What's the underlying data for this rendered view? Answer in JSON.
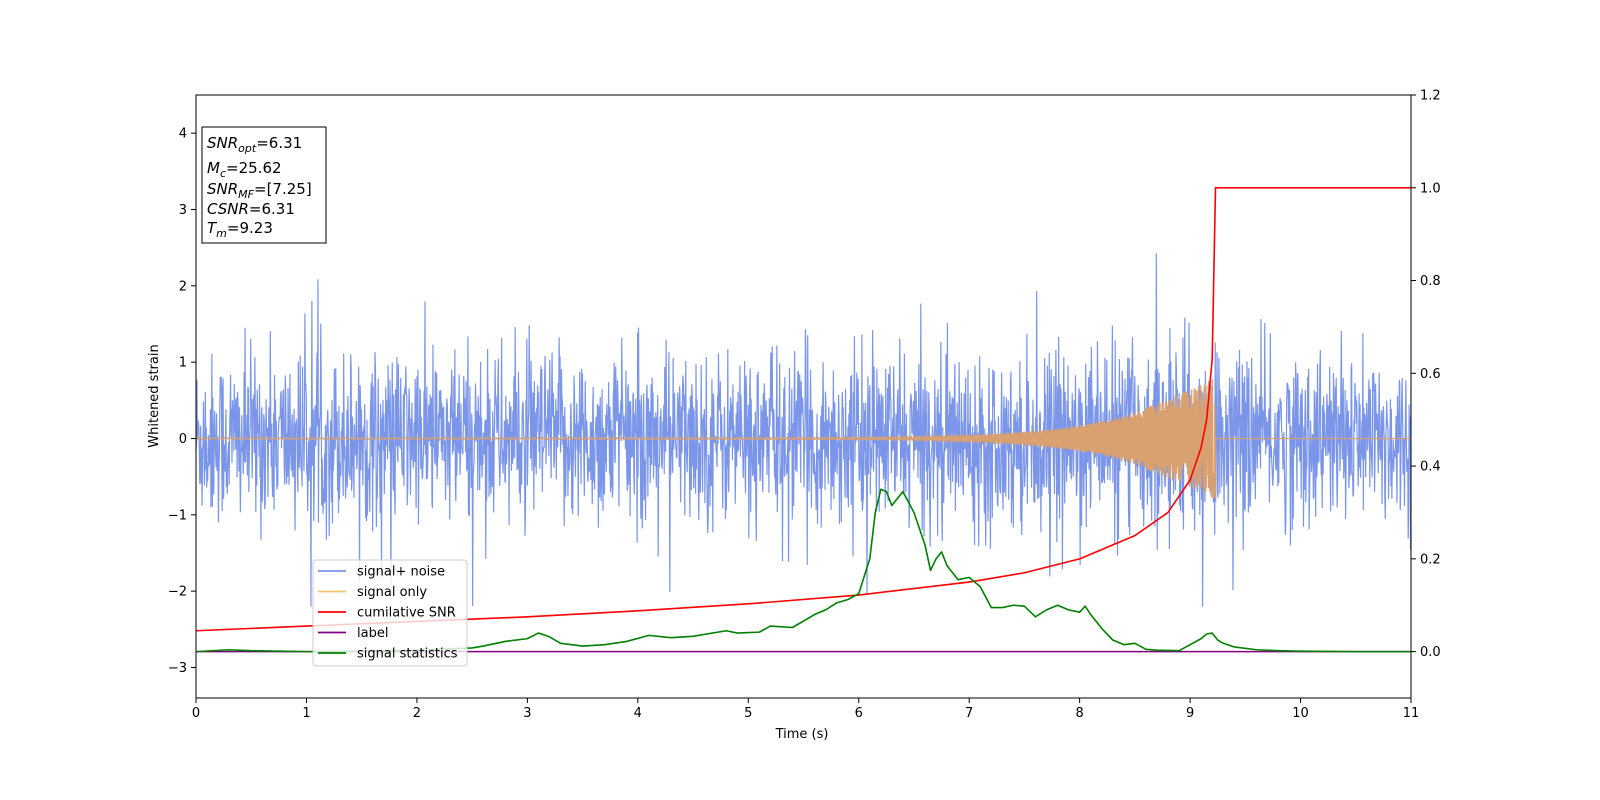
{
  "chart_data": {
    "type": "line",
    "xlabel": "Time (s)",
    "ylabel": "Whitened strain",
    "xlim": [
      0,
      11
    ],
    "ylim_left": [
      -3.4,
      4.5
    ],
    "ylim_right": [
      -0.1,
      1.2
    ],
    "x_ticks": [
      "0",
      "1",
      "2",
      "3",
      "4",
      "5",
      "6",
      "7",
      "8",
      "9",
      "10",
      "11"
    ],
    "y_ticks_left": [
      "−3",
      "−2",
      "−1",
      "0",
      "1",
      "2",
      "3",
      "4"
    ],
    "y_ticks_right": [
      "0.0",
      "0.2",
      "0.4",
      "0.6",
      "0.8",
      "1.0",
      "1.2"
    ],
    "grid": false,
    "legend_position": "lower-left",
    "info_box": {
      "snr_opt": {
        "sym": "SNR",
        "sub": "opt",
        "value": "=6.31"
      },
      "mc": {
        "sym": "M",
        "sub": "c",
        "value": "=25.62"
      },
      "snr_mf": {
        "sym": "SNR",
        "sub": "MF",
        "value": "=[7.25]"
      },
      "csnr": {
        "sym": "CSNR",
        "sub": "",
        "value": "=6.31"
      },
      "tm": {
        "sym": "T",
        "sub": "m",
        "value": "=9.23"
      }
    },
    "series": [
      {
        "name": "signal+ noise",
        "color": "#7b96e8",
        "axis": "left",
        "style": "noise",
        "amplitude_typical": 1.1,
        "peak_max": 2.67
      },
      {
        "name": "signal only",
        "color": "#f6c36b",
        "axis": "left",
        "style": "chirp",
        "merger_time": 9.23,
        "peak_amplitude": 0.8
      },
      {
        "name": "cumilative SNR",
        "color": "#ff0000",
        "axis": "right",
        "x": [
          0,
          1,
          2,
          3,
          4,
          5,
          6,
          7,
          7.5,
          8,
          8.5,
          8.8,
          9.0,
          9.1,
          9.15,
          9.2,
          9.23,
          9.24,
          11
        ],
        "y": [
          0.045,
          0.055,
          0.065,
          0.075,
          0.088,
          0.103,
          0.122,
          0.15,
          0.17,
          0.2,
          0.25,
          0.3,
          0.37,
          0.44,
          0.5,
          0.63,
          1.0,
          1.0,
          1.0
        ]
      },
      {
        "name": "label",
        "color": "#800080",
        "axis": "right",
        "x": [
          0,
          11
        ],
        "y": [
          0,
          0
        ]
      },
      {
        "name": "signal statistics",
        "color": "#008000",
        "axis": "right",
        "x": [
          0,
          0.3,
          0.5,
          1,
          1.5,
          2,
          2.5,
          2.6,
          2.8,
          3.0,
          3.1,
          3.2,
          3.3,
          3.5,
          3.7,
          3.9,
          4.1,
          4.3,
          4.5,
          4.8,
          4.9,
          5.1,
          5.2,
          5.4,
          5.6,
          5.7,
          5.8,
          5.9,
          6.0,
          6.1,
          6.15,
          6.2,
          6.25,
          6.3,
          6.35,
          6.4,
          6.5,
          6.6,
          6.65,
          6.7,
          6.75,
          6.8,
          6.85,
          6.9,
          7.0,
          7.1,
          7.2,
          7.3,
          7.4,
          7.5,
          7.6,
          7.7,
          7.8,
          7.9,
          8.0,
          8.05,
          8.1,
          8.2,
          8.3,
          8.4,
          8.5,
          8.6,
          8.7,
          8.9,
          9.0,
          9.1,
          9.15,
          9.2,
          9.25,
          9.3,
          9.4,
          9.6,
          9.8,
          10,
          10.5,
          11
        ],
        "y": [
          0.0,
          0.004,
          0.002,
          0.0,
          0.001,
          0.003,
          0.008,
          0.012,
          0.022,
          0.028,
          0.04,
          0.032,
          0.018,
          0.012,
          0.015,
          0.022,
          0.035,
          0.03,
          0.033,
          0.045,
          0.04,
          0.042,
          0.055,
          0.052,
          0.08,
          0.09,
          0.105,
          0.112,
          0.125,
          0.2,
          0.3,
          0.35,
          0.345,
          0.315,
          0.33,
          0.345,
          0.3,
          0.23,
          0.175,
          0.2,
          0.215,
          0.185,
          0.17,
          0.155,
          0.16,
          0.14,
          0.095,
          0.095,
          0.1,
          0.098,
          0.075,
          0.09,
          0.1,
          0.09,
          0.085,
          0.098,
          0.08,
          0.05,
          0.025,
          0.015,
          0.018,
          0.005,
          0.003,
          0.002,
          0.015,
          0.028,
          0.038,
          0.04,
          0.025,
          0.018,
          0.01,
          0.004,
          0.002,
          0.001,
          0.0,
          0.0
        ]
      }
    ]
  }
}
